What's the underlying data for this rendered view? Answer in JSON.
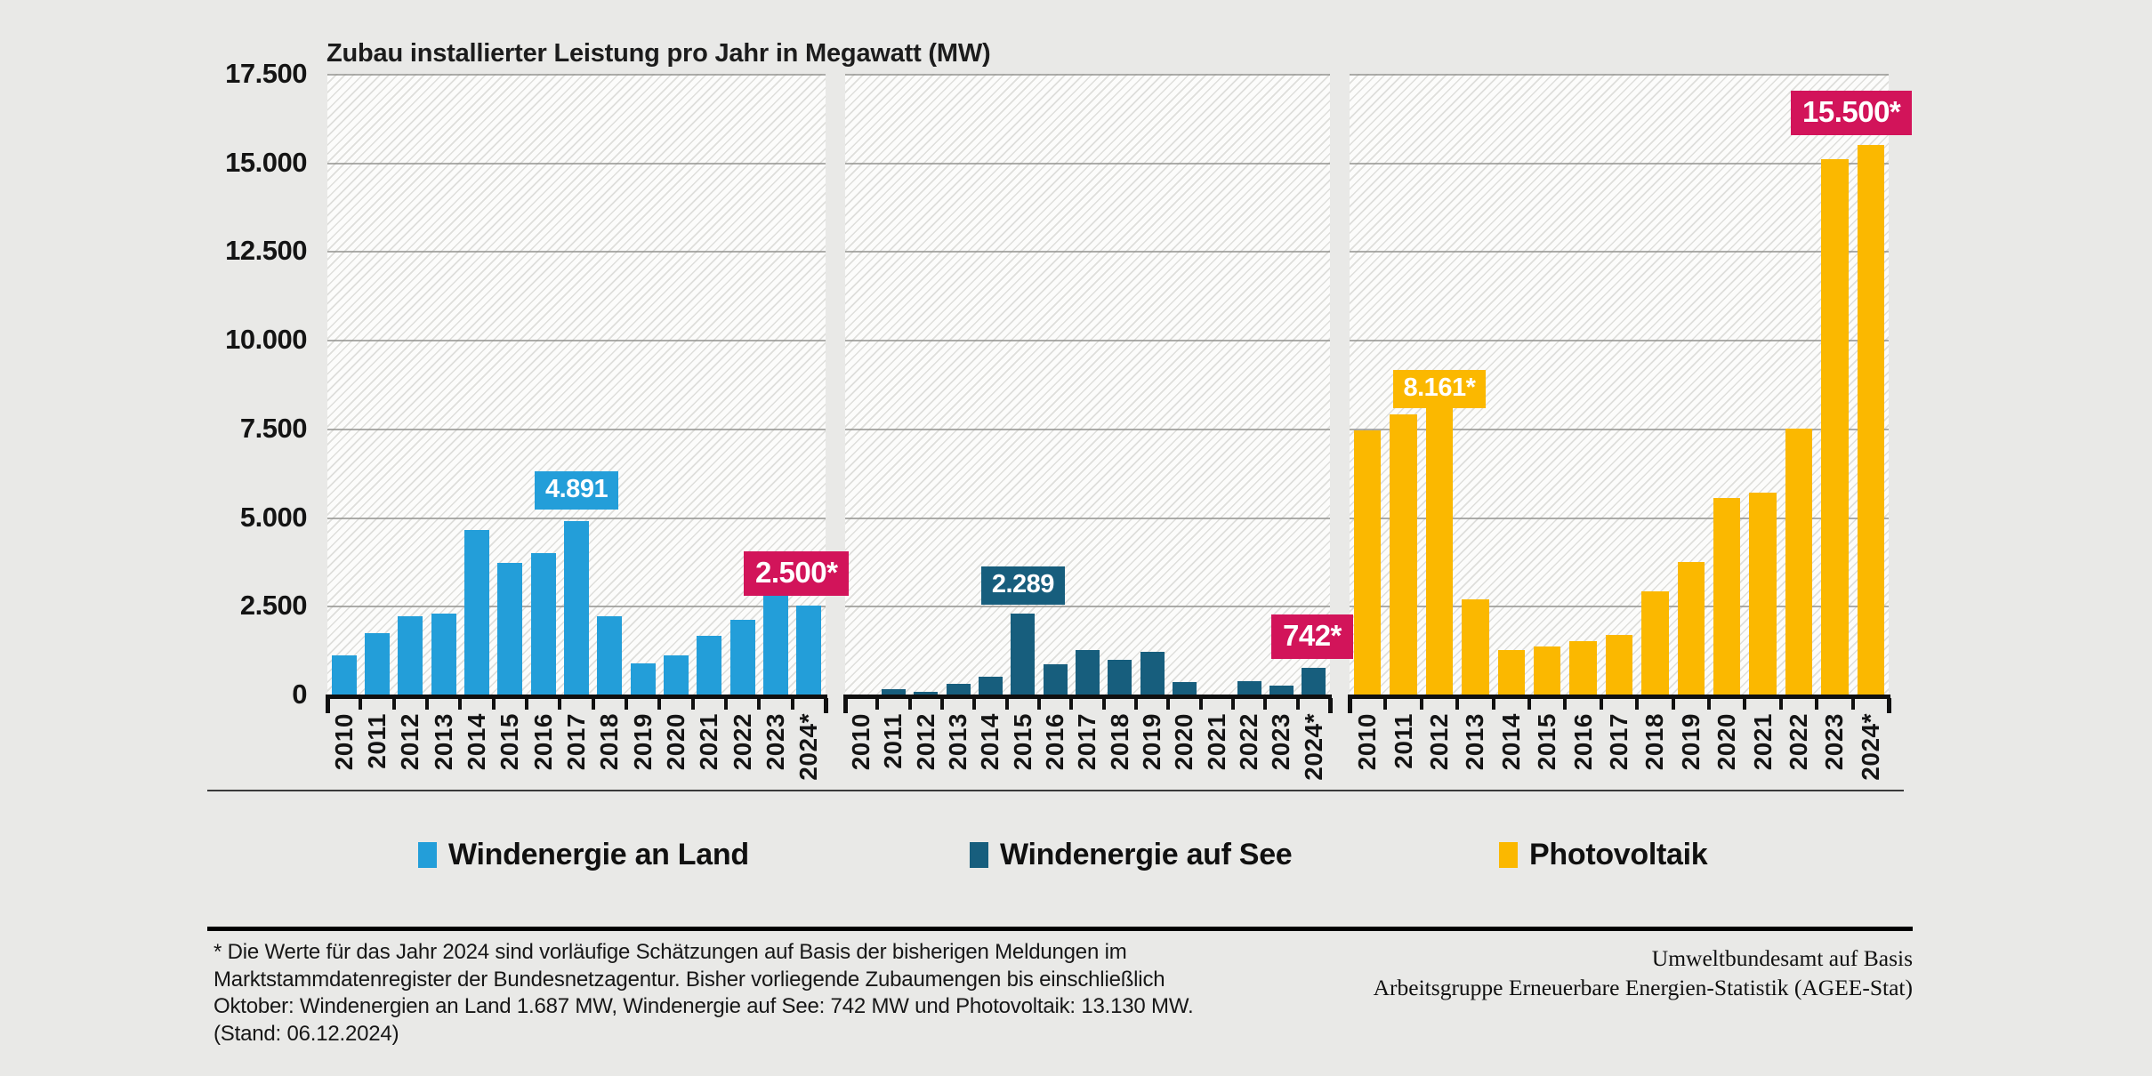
{
  "page": {
    "background": "#E9E9E7"
  },
  "chart_data": {
    "type": "bar",
    "title": "Zubau installierter Leistung pro Jahr in Megawatt (MW)",
    "unit": "MW",
    "ylim": [
      0,
      17500
    ],
    "ytick_step": 2500,
    "grid": true,
    "legend_position": "bottom",
    "categories": [
      "2010",
      "2011",
      "2012",
      "2013",
      "2014",
      "2015",
      "2016",
      "2017",
      "2018",
      "2019",
      "2020",
      "2021",
      "2022",
      "2023",
      "2024*"
    ],
    "y_tick_labels": [
      "17.500",
      "15.000",
      "12.500",
      "10.000",
      "7.500",
      "5.000",
      "2.500",
      "0"
    ],
    "highlight_color": "#D2145A",
    "series": [
      {
        "name": "Windenergie an Land",
        "color": "#239ED9",
        "values": [
          1100,
          1725,
          2200,
          2275,
          4650,
          3700,
          3975,
          4891,
          2200,
          875,
          1100,
          1650,
          2100,
          2775,
          2500
        ]
      },
      {
        "name": "Windenergie auf See",
        "color": "#175E7D",
        "values": [
          0,
          150,
          85,
          290,
          490,
          2289,
          860,
          1250,
          975,
          1200,
          350,
          0,
          375,
          250,
          742
        ]
      },
      {
        "name": "Photovoltaik",
        "color": "#FBB800",
        "values": [
          7450,
          7900,
          8161,
          2675,
          1250,
          1350,
          1500,
          1675,
          2900,
          3725,
          5550,
          5700,
          7500,
          15100,
          15500
        ]
      }
    ],
    "annotations": [
      {
        "series": 0,
        "category": "2017",
        "text": "4.891",
        "style": "series",
        "gap": 13
      },
      {
        "series": 0,
        "category": "2024*",
        "text": "2.500*",
        "style": "highlight",
        "gap": 11
      },
      {
        "series": 1,
        "category": "2015",
        "text": "2.289",
        "style": "series",
        "gap": 10
      },
      {
        "series": 1,
        "category": "2024*",
        "text": "742*",
        "style": "highlight",
        "gap": 10
      },
      {
        "series": 2,
        "category": "2012",
        "text": "8.161*",
        "style": "series",
        "gap": -3
      },
      {
        "series": 2,
        "category": "2024*",
        "text": "15.500*",
        "style": "highlight",
        "gap": 11
      }
    ]
  },
  "footnote": {
    "lines": [
      "* Die Werte für das Jahr 2024 sind vorläufige Schätzungen auf Basis der bisherigen Meldungen im",
      "Marktstammdatenregister der Bundesnetzagentur. Bisher vorliegende Zubaumengen bis einschließlich",
      "Oktober: Windenergien an Land 1.687 MW, Windenergie auf See: 742 MW und Photovoltaik: 13.130 MW.",
      "(Stand: 06.12.2024)"
    ]
  },
  "credit": {
    "lines": [
      "Umweltbundesamt auf Basis",
      "Arbeitsgruppe Erneuerbare Energien-Statistik (AGEE-Stat)"
    ]
  }
}
